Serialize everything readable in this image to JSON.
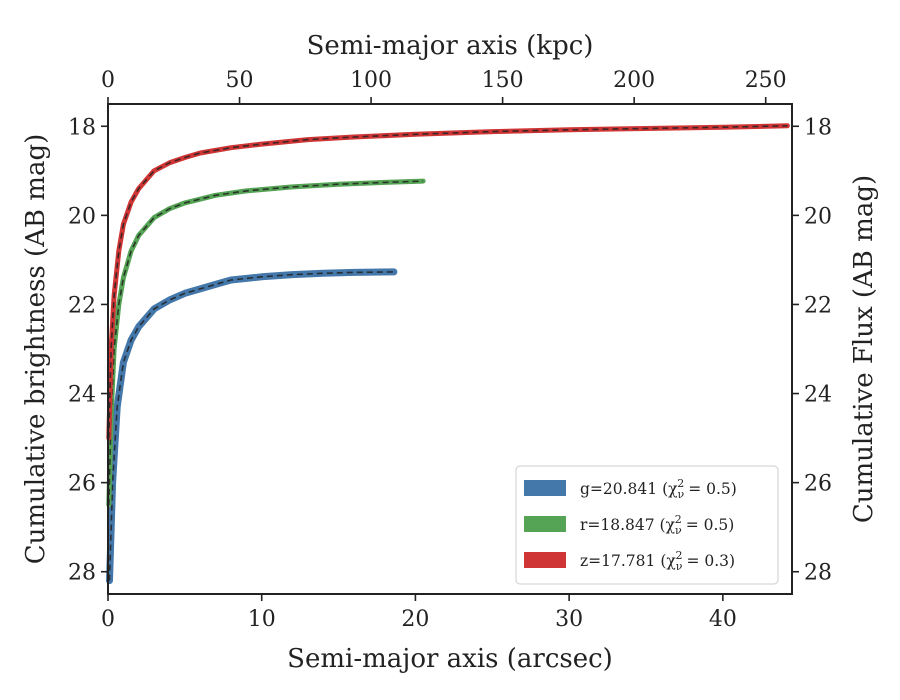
{
  "chart_data": {
    "type": "line",
    "xlabel": "Semi-major axis (arcsec)",
    "ylabel": "Cumulative brightness (AB mag)",
    "top_xlabel": "Semi-major axis (kpc)",
    "right_ylabel": "Cumulative Flux (AB mag)",
    "xlim": [
      0,
      44.5
    ],
    "ylim": [
      28.5,
      17.5
    ],
    "top_xlim": [
      0,
      260
    ],
    "x_ticks": [
      0,
      10,
      20,
      30,
      40
    ],
    "x_tick_labels": [
      "0",
      "10",
      "20",
      "30",
      "40"
    ],
    "top_x_ticks": [
      0,
      50,
      100,
      150,
      200,
      250
    ],
    "top_x_tick_labels": [
      "0",
      "50",
      "100",
      "150",
      "200",
      "250"
    ],
    "y_ticks": [
      18,
      20,
      22,
      24,
      26,
      28
    ],
    "y_tick_labels": [
      "18",
      "20",
      "22",
      "24",
      "26",
      "28"
    ],
    "legend_position": "lower-right",
    "grid": false,
    "series": [
      {
        "name": "g=20.841",
        "legend_label": "g=20.841 (χ",
        "legend_sub": "ν",
        "legend_sup": "2",
        "legend_tail": "= 0.5)",
        "color": "#4477aa",
        "x": [
          0.1,
          0.3,
          0.6,
          1.0,
          1.5,
          2.0,
          3.0,
          4.0,
          5.0,
          6.0,
          7.0,
          8.0,
          10.0,
          12.0,
          14.0,
          16.0,
          18.6
        ],
        "y": [
          28.2,
          26.0,
          24.3,
          23.3,
          22.8,
          22.5,
          22.1,
          21.9,
          21.75,
          21.65,
          21.55,
          21.45,
          21.38,
          21.33,
          21.3,
          21.28,
          21.27
        ]
      },
      {
        "name": "r=18.847",
        "legend_label": "r=18.847 (χ",
        "legend_sub": "ν",
        "legend_sup": "2",
        "legend_tail": "= 0.5)",
        "color": "#55a355",
        "x": [
          0.05,
          0.2,
          0.4,
          0.7,
          1.0,
          1.5,
          2.0,
          3.0,
          4.0,
          5.0,
          7.0,
          9.0,
          12.0,
          15.0,
          18.0,
          20.5
        ],
        "y": [
          26.5,
          24.5,
          23.0,
          22.0,
          21.4,
          20.8,
          20.45,
          20.05,
          19.85,
          19.72,
          19.55,
          19.45,
          19.36,
          19.3,
          19.26,
          19.23
        ]
      },
      {
        "name": "z=17.781",
        "legend_label": "z=17.781 (χ",
        "legend_sub": "ν",
        "legend_sup": "2",
        "legend_tail": "= 0.3)",
        "color": "#d03535",
        "x": [
          0.05,
          0.2,
          0.4,
          0.7,
          1.0,
          1.5,
          2.0,
          3.0,
          4.0,
          5.0,
          6.0,
          8.0,
          10.0,
          13.0,
          16.0,
          20.0,
          25.0,
          30.0,
          35.0,
          40.0,
          44.2
        ],
        "y": [
          25.0,
          23.0,
          21.8,
          20.8,
          20.2,
          19.7,
          19.4,
          19.0,
          18.82,
          18.7,
          18.6,
          18.48,
          18.4,
          18.3,
          18.24,
          18.18,
          18.12,
          18.08,
          18.05,
          18.02,
          17.99
        ]
      }
    ]
  }
}
